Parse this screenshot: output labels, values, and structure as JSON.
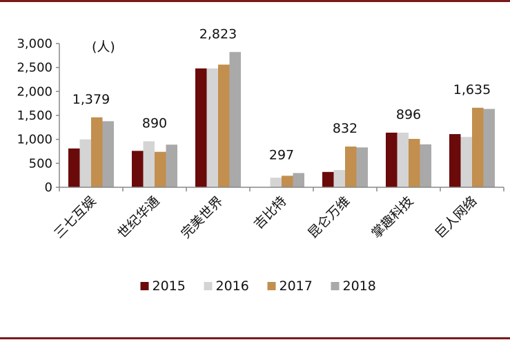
{
  "chart_data": {
    "type": "bar",
    "unit_label": "(人)",
    "categories": [
      "三七互娱",
      "世纪华通",
      "完美世界",
      "吉比特",
      "昆仑万维",
      "掌趣科技",
      "巨人网络"
    ],
    "series": [
      {
        "name": "2015",
        "color": "#6b0a0a",
        "values": [
          810,
          760,
          2480,
          0,
          320,
          1140,
          1110
        ]
      },
      {
        "name": "2016",
        "color": "#d4d4d4",
        "values": [
          1000,
          960,
          2480,
          200,
          360,
          1140,
          1050
        ]
      },
      {
        "name": "2017",
        "color": "#c28f4e",
        "values": [
          1460,
          740,
          2560,
          240,
          850,
          1010,
          1660
        ]
      },
      {
        "name": "2018",
        "color": "#a9a9a9",
        "values": [
          1379,
          890,
          2823,
          297,
          832,
          896,
          1635
        ]
      }
    ],
    "data_labels": [
      "1,379",
      "890",
      "2,823",
      "297",
      "832",
      "896",
      "1,635"
    ],
    "yticks": [
      0,
      500,
      1000,
      1500,
      2000,
      2500,
      3000
    ],
    "ytick_labels": [
      "0",
      "500",
      "1,000",
      "1,500",
      "2,000",
      "2,500",
      "3,000"
    ],
    "ylim": [
      0,
      3000
    ],
    "legend_position": "bottom-center",
    "title": "",
    "xlabel": "",
    "ylabel": ""
  }
}
